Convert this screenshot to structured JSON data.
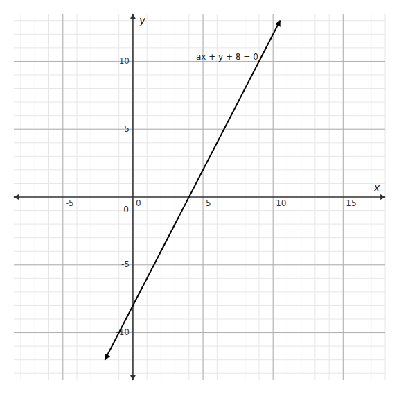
{
  "chart_data": {
    "type": "line",
    "title": "",
    "xlabel": "x",
    "ylabel": "y",
    "x": [
      -2.0,
      10.5
    ],
    "values": [
      -12.0,
      13.0
    ],
    "color": "#000000",
    "xlim": [
      -8.5,
      18
    ],
    "ylim": [
      -13.5,
      13.5
    ],
    "xticks": [
      -5,
      0,
      5,
      10,
      15
    ],
    "yticks": [
      -10,
      -5,
      5,
      10
    ],
    "grid": true,
    "annotations": [
      {
        "text": "ax + y + 8 = 0",
        "x": 4.5,
        "y": 10.3
      },
      {
        "text": "0",
        "x": -0.3,
        "y": -0.7
      }
    ]
  }
}
